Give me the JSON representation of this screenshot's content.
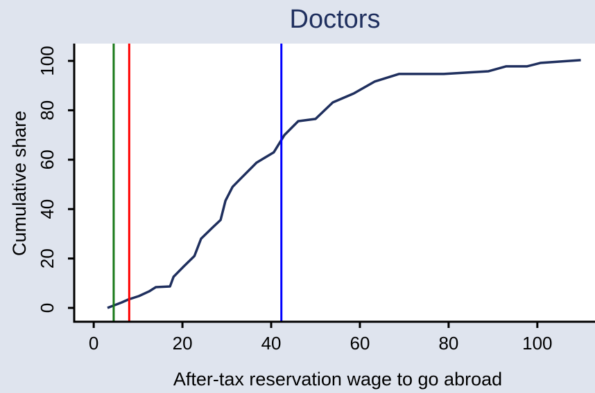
{
  "chart_data": {
    "type": "line",
    "title": "Doctors",
    "x_label": "After-tax reservation wage to go abroad",
    "y_label": "Cumulative share",
    "xlim": [
      -4.4,
      113
    ],
    "xticks": [
      0,
      20,
      40,
      60,
      80,
      100
    ],
    "ylim": [
      -5.6,
      107
    ],
    "yticks": [
      0,
      20,
      40,
      60,
      80,
      100
    ],
    "series": [
      {
        "color": "#1f2f5e",
        "x": [
          3.1,
          6.3,
          7.8,
          10.2,
          12.5,
          14,
          17.2,
          18,
          20.3,
          22.7,
          24.2,
          26.6,
          28.6,
          29.7,
          31.3,
          33.6,
          36.7,
          40.6,
          43,
          46.1,
          50,
          53.9,
          58.6,
          63.3,
          68.8,
          78.9,
          89,
          93,
          97.7,
          100.8,
          109.8
        ],
        "values": [
          0,
          2.2,
          3.4,
          4.8,
          6.7,
          8.4,
          8.7,
          12.6,
          16.8,
          21,
          28,
          32.2,
          35.6,
          43.4,
          49,
          53.2,
          58.8,
          63,
          70,
          75.6,
          76.5,
          83.2,
          86.8,
          91.6,
          94.7,
          94.7,
          95.8,
          97.8,
          97.8,
          99.2,
          100.3
        ]
      }
    ],
    "vlines": [
      {
        "x": 4.5,
        "color": "#1a7a1a"
      },
      {
        "x": 8,
        "color": "#ff0000"
      },
      {
        "x": 42.3,
        "color": "#0000ff"
      }
    ]
  }
}
